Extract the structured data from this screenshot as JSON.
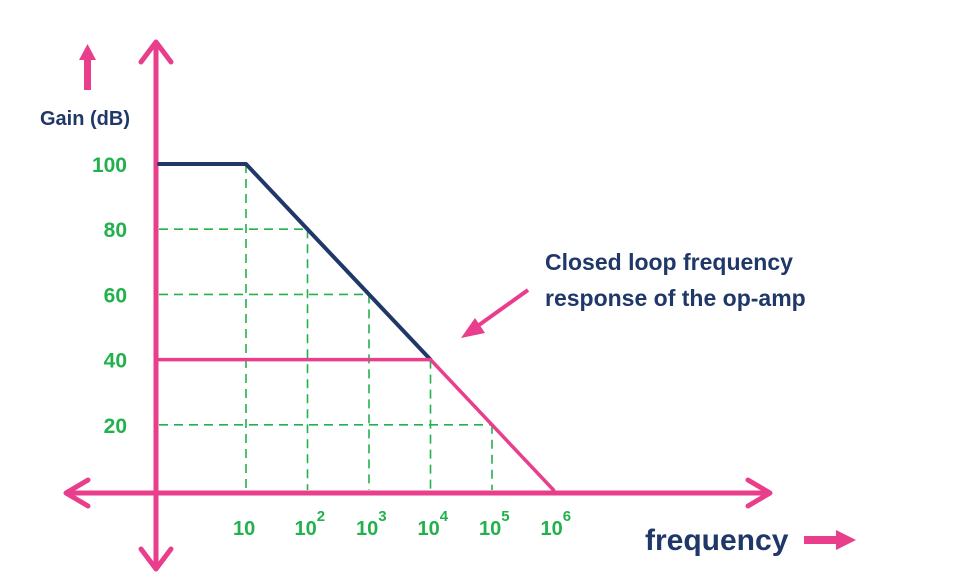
{
  "chart_data": {
    "type": "line",
    "xscale": "log",
    "ylabel": "Gain (dB)",
    "xlabel": "frequency",
    "y_ticks": [
      {
        "value": 100,
        "label": "100"
      },
      {
        "value": 80,
        "label": "80"
      },
      {
        "value": 60,
        "label": "60"
      },
      {
        "value": 40,
        "label": "40"
      },
      {
        "value": 20,
        "label": "20"
      }
    ],
    "x_ticks": [
      {
        "value": 10,
        "base": "10",
        "exp": ""
      },
      {
        "value": 100,
        "base": "10",
        "exp": "2"
      },
      {
        "value": 1000,
        "base": "10",
        "exp": "3"
      },
      {
        "value": 10000,
        "base": "10",
        "exp": "4"
      },
      {
        "value": 100000,
        "base": "10",
        "exp": "5"
      },
      {
        "value": 1000000,
        "base": "10",
        "exp": "6"
      }
    ],
    "series": [
      {
        "color": "#1f3869",
        "points": [
          [
            1,
            100
          ],
          [
            10,
            100
          ],
          [
            100,
            80
          ],
          [
            1000,
            60
          ],
          [
            10000,
            40
          ]
        ]
      },
      {
        "color": "#e83e8c",
        "points": [
          [
            1,
            40
          ],
          [
            10000,
            40
          ],
          [
            1000000,
            0
          ]
        ]
      }
    ],
    "guides": [
      {
        "x": 10,
        "y": 100
      },
      {
        "x": 100,
        "y": 80
      },
      {
        "x": 1000,
        "y": 60
      },
      {
        "x": 10000,
        "y": 40
      },
      {
        "x": 100000,
        "y": 20
      }
    ],
    "annotation": {
      "lines": [
        "Closed loop frequency",
        "response of the op-amp"
      ]
    },
    "colors": {
      "axes": "#e83e8c",
      "ticks": "#22b14c",
      "grid": "#22b14c",
      "text": "#1f3869"
    }
  }
}
